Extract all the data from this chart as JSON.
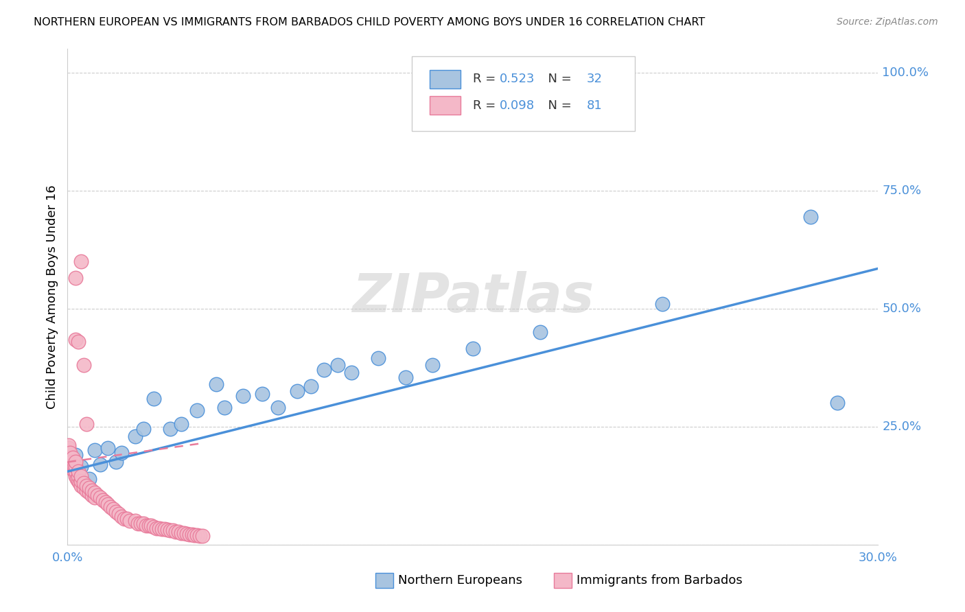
{
  "title": "NORTHERN EUROPEAN VS IMMIGRANTS FROM BARBADOS CHILD POVERTY AMONG BOYS UNDER 16 CORRELATION CHART",
  "source": "Source: ZipAtlas.com",
  "ylabel": "Child Poverty Among Boys Under 16",
  "xlim": [
    0.0,
    0.3
  ],
  "ylim": [
    0.0,
    1.05
  ],
  "xticks": [
    0.0,
    0.06,
    0.12,
    0.18,
    0.24,
    0.3
  ],
  "ytick_positions": [
    0.0,
    0.25,
    0.5,
    0.75,
    1.0
  ],
  "yticklabels": [
    "",
    "25.0%",
    "50.0%",
    "75.0%",
    "100.0%"
  ],
  "color_blue": "#a8c4e0",
  "color_pink": "#f4b8c8",
  "color_blue_text": "#4a90d9",
  "color_pink_text": "#e87a9a",
  "watermark": "ZIPatlas",
  "blue_scatter_x": [
    0.003,
    0.005,
    0.008,
    0.01,
    0.012,
    0.015,
    0.018,
    0.02,
    0.025,
    0.028,
    0.032,
    0.038,
    0.042,
    0.048,
    0.055,
    0.058,
    0.065,
    0.072,
    0.078,
    0.085,
    0.09,
    0.095,
    0.1,
    0.105,
    0.115,
    0.125,
    0.135,
    0.15,
    0.175,
    0.22,
    0.275,
    0.285
  ],
  "blue_scatter_y": [
    0.19,
    0.165,
    0.14,
    0.2,
    0.17,
    0.205,
    0.175,
    0.195,
    0.23,
    0.245,
    0.31,
    0.245,
    0.255,
    0.285,
    0.34,
    0.29,
    0.315,
    0.32,
    0.29,
    0.325,
    0.335,
    0.37,
    0.38,
    0.365,
    0.395,
    0.355,
    0.38,
    0.415,
    0.45,
    0.51,
    0.695,
    0.3
  ],
  "pink_scatter_x": [
    0.0002,
    0.0003,
    0.0005,
    0.0005,
    0.001,
    0.001,
    0.001,
    0.0015,
    0.0015,
    0.002,
    0.002,
    0.002,
    0.0025,
    0.0025,
    0.003,
    0.003,
    0.003,
    0.003,
    0.0035,
    0.004,
    0.004,
    0.004,
    0.0045,
    0.005,
    0.005,
    0.005,
    0.006,
    0.006,
    0.007,
    0.007,
    0.008,
    0.008,
    0.009,
    0.009,
    0.01,
    0.01,
    0.011,
    0.012,
    0.013,
    0.014,
    0.015,
    0.016,
    0.017,
    0.018,
    0.019,
    0.02,
    0.021,
    0.022,
    0.023,
    0.025,
    0.026,
    0.027,
    0.028,
    0.029,
    0.03,
    0.031,
    0.032,
    0.033,
    0.034,
    0.035,
    0.036,
    0.037,
    0.038,
    0.039,
    0.04,
    0.041,
    0.042,
    0.043,
    0.044,
    0.045,
    0.046,
    0.047,
    0.048,
    0.049,
    0.05,
    0.005,
    0.003,
    0.003,
    0.004,
    0.006,
    0.007
  ],
  "pink_scatter_y": [
    0.195,
    0.205,
    0.19,
    0.21,
    0.175,
    0.185,
    0.195,
    0.165,
    0.175,
    0.16,
    0.17,
    0.185,
    0.155,
    0.165,
    0.145,
    0.155,
    0.165,
    0.175,
    0.14,
    0.135,
    0.145,
    0.155,
    0.13,
    0.125,
    0.135,
    0.145,
    0.12,
    0.13,
    0.115,
    0.125,
    0.11,
    0.12,
    0.105,
    0.115,
    0.1,
    0.11,
    0.105,
    0.1,
    0.095,
    0.09,
    0.085,
    0.08,
    0.075,
    0.07,
    0.065,
    0.06,
    0.055,
    0.055,
    0.05,
    0.05,
    0.045,
    0.045,
    0.045,
    0.04,
    0.04,
    0.04,
    0.038,
    0.035,
    0.035,
    0.033,
    0.033,
    0.032,
    0.03,
    0.03,
    0.028,
    0.028,
    0.025,
    0.025,
    0.023,
    0.022,
    0.022,
    0.02,
    0.02,
    0.018,
    0.018,
    0.6,
    0.565,
    0.435,
    0.43,
    0.38,
    0.255
  ],
  "blue_line_x": [
    0.0,
    0.3
  ],
  "blue_line_y": [
    0.155,
    0.585
  ],
  "pink_line_x": [
    0.0,
    0.05
  ],
  "pink_line_y": [
    0.175,
    0.215
  ],
  "bottom_legend_labels": [
    "Northern Europeans",
    "Immigrants from Barbados"
  ]
}
